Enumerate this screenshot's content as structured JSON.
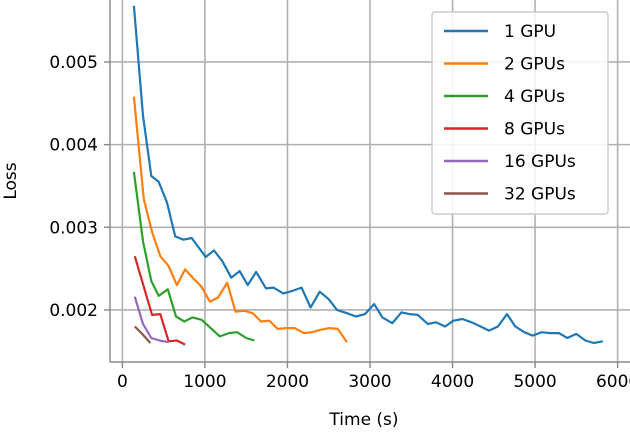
{
  "chart_data": {
    "type": "line",
    "title": "",
    "xlabel": "Time (s)",
    "ylabel": "Loss",
    "xlim": [
      -150,
      6150
    ],
    "ylim": [
      0.00137,
      0.00575
    ],
    "x_ticks": [
      0,
      1000,
      2000,
      3000,
      4000,
      5000,
      6000
    ],
    "y_ticks": [
      0.002,
      0.003,
      0.004,
      0.005
    ],
    "x_tick_labels": [
      "0",
      "1000",
      "2000",
      "3000",
      "4000",
      "5000",
      "6000"
    ],
    "y_tick_labels": [
      "0.002",
      "0.003",
      "0.004",
      "0.005"
    ],
    "grid": true,
    "legend_position": "top-right",
    "series": [
      {
        "name": "1 GPU",
        "color": "#1f77b4",
        "x": [
          140,
          250,
          350,
          440,
          540,
          640,
          740,
          840,
          1010,
          1110,
          1210,
          1320,
          1420,
          1520,
          1620,
          1740,
          1830,
          1950,
          2060,
          2170,
          2280,
          2390,
          2500,
          2600,
          2720,
          2830,
          2940,
          3050,
          3150,
          3270,
          3380,
          3480,
          3580,
          3700,
          3800,
          3910,
          4010,
          4120,
          4230,
          4340,
          4440,
          4550,
          4660,
          4760,
          4870,
          4970,
          5080,
          5180,
          5290,
          5390,
          5500,
          5610,
          5710,
          5820
        ],
        "values": [
          0.00568,
          0.00435,
          0.00362,
          0.00355,
          0.0033,
          0.00289,
          0.00285,
          0.00287,
          0.00264,
          0.00272,
          0.00259,
          0.00239,
          0.00247,
          0.0023,
          0.00246,
          0.00226,
          0.00227,
          0.0022,
          0.00223,
          0.00227,
          0.00203,
          0.00222,
          0.00213,
          0.002,
          0.00196,
          0.00192,
          0.00195,
          0.00207,
          0.00191,
          0.00184,
          0.00197,
          0.00195,
          0.00194,
          0.00183,
          0.00185,
          0.0018,
          0.00187,
          0.00189,
          0.00185,
          0.0018,
          0.00175,
          0.0018,
          0.00195,
          0.0018,
          0.00173,
          0.00169,
          0.00173,
          0.00172,
          0.00172,
          0.00166,
          0.00171,
          0.00163,
          0.0016,
          0.00162
        ]
      },
      {
        "name": "2 GPUs",
        "color": "#ff7f0e",
        "x": [
          140,
          260,
          360,
          460,
          560,
          660,
          760,
          860,
          960,
          1060,
          1160,
          1270,
          1370,
          1480,
          1580,
          1680,
          1780,
          1880,
          1990,
          2090,
          2200,
          2300,
          2400,
          2510,
          2610,
          2720
        ],
        "values": [
          0.00458,
          0.00334,
          0.00294,
          0.00265,
          0.00253,
          0.0023,
          0.00249,
          0.00238,
          0.00228,
          0.0021,
          0.00215,
          0.00233,
          0.00198,
          0.00199,
          0.00196,
          0.00186,
          0.00187,
          0.00177,
          0.00178,
          0.00178,
          0.00172,
          0.00173,
          0.00176,
          0.00178,
          0.00177,
          0.00161
        ]
      },
      {
        "name": "4 GPUs",
        "color": "#2ca02c",
        "x": [
          140,
          250,
          350,
          440,
          550,
          650,
          750,
          850,
          960,
          1070,
          1180,
          1290,
          1390,
          1500,
          1600
        ],
        "values": [
          0.00367,
          0.00283,
          0.00235,
          0.00217,
          0.00225,
          0.00192,
          0.00186,
          0.00191,
          0.00188,
          0.00178,
          0.00168,
          0.00172,
          0.00173,
          0.00166,
          0.00163
        ]
      },
      {
        "name": "8 GPUs",
        "color": "#d62728",
        "x": [
          150,
          260,
          360,
          460,
          560,
          660,
          760
        ],
        "values": [
          0.00265,
          0.00228,
          0.00194,
          0.00195,
          0.00162,
          0.00163,
          0.00158
        ]
      },
      {
        "name": "16 GPUs",
        "color": "#9467bd",
        "x": [
          150,
          250,
          350,
          450,
          560
        ],
        "values": [
          0.00216,
          0.00183,
          0.00166,
          0.00163,
          0.00161
        ]
      },
      {
        "name": "32 GPUs",
        "color": "#8c564b",
        "x": [
          150,
          240,
          340
        ],
        "values": [
          0.0018,
          0.00171,
          0.0016
        ]
      }
    ]
  }
}
